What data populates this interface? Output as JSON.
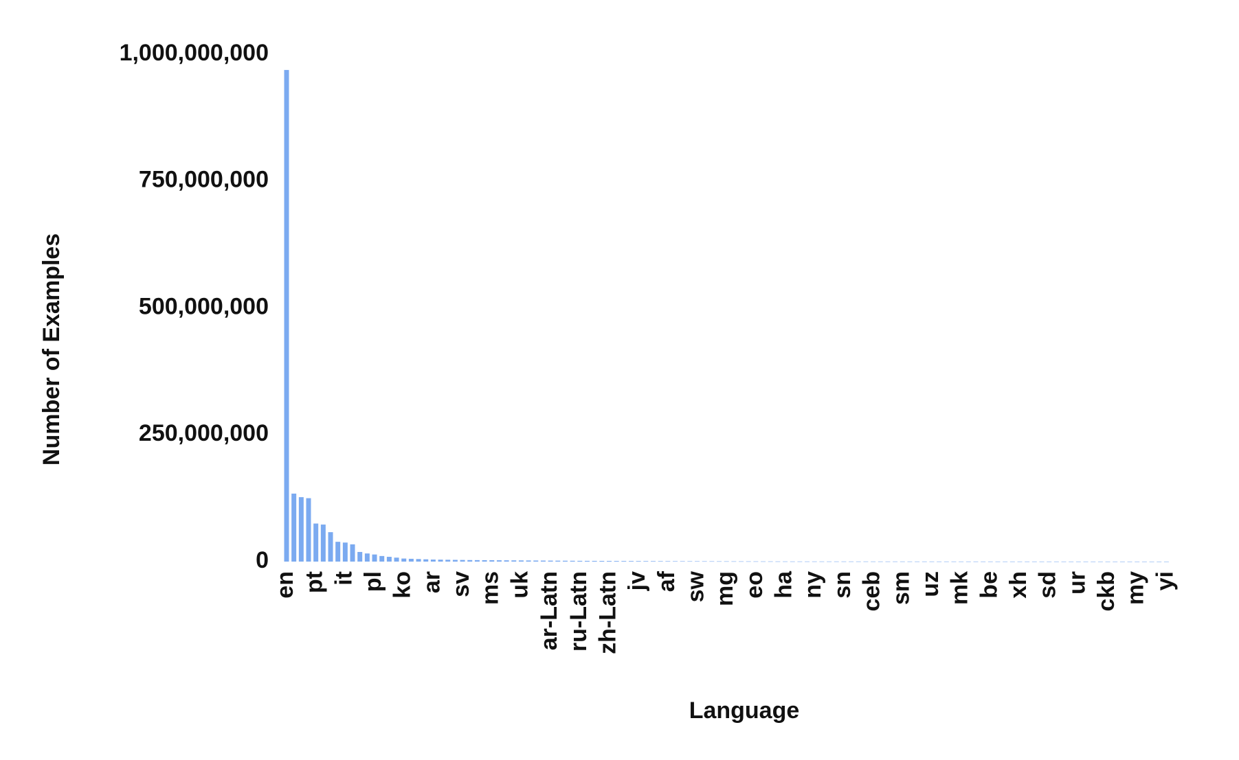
{
  "chart_data": {
    "type": "bar",
    "x_label": "Language",
    "y_label": "Number of Examples",
    "categories": [
      "en",
      null,
      null,
      null,
      "pt",
      null,
      null,
      null,
      "it",
      null,
      null,
      null,
      "pl",
      null,
      null,
      null,
      "ko",
      null,
      null,
      null,
      "ar",
      null,
      null,
      null,
      "sv",
      null,
      null,
      null,
      "ms",
      null,
      null,
      null,
      "uk",
      null,
      null,
      null,
      "ar-Latn",
      null,
      null,
      null,
      "ru-Latn",
      null,
      null,
      null,
      "zh-Latn",
      null,
      null,
      null,
      "jv",
      null,
      null,
      null,
      "af",
      null,
      null,
      null,
      "sw",
      null,
      null,
      null,
      "mg",
      null,
      null,
      null,
      "eo",
      null,
      null,
      null,
      "ha",
      null,
      null,
      null,
      "ny",
      null,
      null,
      null,
      "sn",
      null,
      null,
      null,
      "ceb",
      null,
      null,
      null,
      "sm",
      null,
      null,
      null,
      "uz",
      null,
      null,
      null,
      "mk",
      null,
      null,
      null,
      "be",
      null,
      null,
      null,
      "xh",
      null,
      null,
      null,
      "sd",
      null,
      null,
      null,
      "ur",
      null,
      null,
      null,
      "ckb",
      null,
      null,
      null,
      "my",
      null,
      null,
      null,
      "yi"
    ],
    "values": [
      969000000,
      134000000,
      127000000,
      125000000,
      75000000,
      73000000,
      58000000,
      39000000,
      37500000,
      34000000,
      19000000,
      16000000,
      14000000,
      11000000,
      9400000,
      7800000,
      6000000,
      5500000,
      5000000,
      4500000,
      4000000,
      3800000,
      3600000,
      3400000,
      3200000,
      3000000,
      2900000,
      2800000,
      2700000,
      2600000,
      2500000,
      2400000,
      2300000,
      2200000,
      2100000,
      2000000,
      1900000,
      1800000,
      1700000,
      1600000,
      1500000,
      1450000,
      1400000,
      1350000,
      1300000,
      1250000,
      1200000,
      1150000,
      1100000,
      1050000,
      1000000,
      950000,
      900000,
      850000,
      800000,
      760000,
      720000,
      680000,
      640000,
      600000,
      570000,
      540000,
      510000,
      480000,
      450000,
      420000,
      390000,
      360000,
      330000,
      300000,
      295000,
      290000,
      285000,
      280000,
      275000,
      270000,
      265000,
      260000,
      255000,
      250000,
      245000,
      240000,
      235000,
      230000,
      225000,
      220000,
      215000,
      210000,
      205000,
      200000,
      195000,
      190000,
      185000,
      180000,
      175000,
      170000,
      165000,
      160000,
      155000,
      150000,
      145000,
      140000,
      135000,
      130000,
      125000,
      120000,
      115000,
      110000,
      105000,
      100000,
      95000,
      90000,
      85000,
      80000,
      75000,
      70000,
      65000,
      60000,
      55000,
      50000,
      45000
    ],
    "color": "#7baaf0",
    "ylim": [
      0,
      1000000000
    ],
    "yticks": [
      0,
      {
        "value": 250000000,
        "label": "250,000,000"
      },
      {
        "value": 500000000,
        "label": "500,000,000"
      },
      {
        "value": 750000000,
        "label": "750,000,000"
      },
      {
        "value": 1000000000,
        "label": "1,000,000,000"
      }
    ],
    "grid": false
  }
}
